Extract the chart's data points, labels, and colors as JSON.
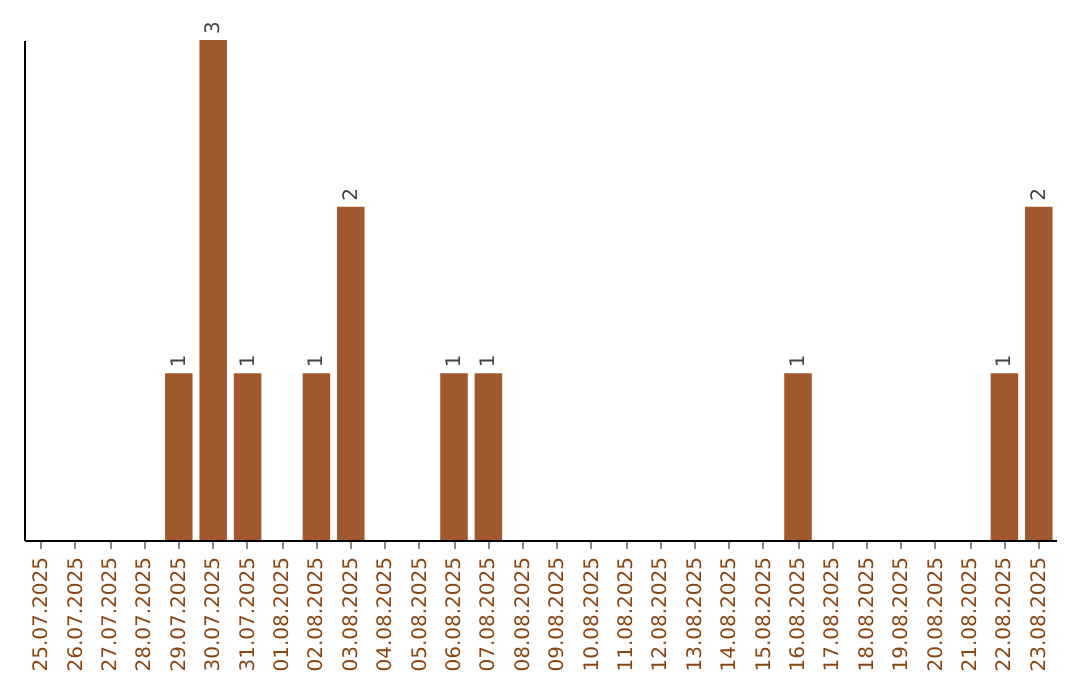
{
  "chart_data": {
    "type": "bar",
    "categories": [
      "25.07.2025",
      "26.07.2025",
      "27.07.2025",
      "28.07.2025",
      "29.07.2025",
      "30.07.2025",
      "31.07.2025",
      "01.08.2025",
      "02.08.2025",
      "03.08.2025",
      "04.08.2025",
      "05.08.2025",
      "06.08.2025",
      "07.08.2025",
      "08.08.2025",
      "09.08.2025",
      "10.08.2025",
      "11.08.2025",
      "12.08.2025",
      "13.08.2025",
      "14.08.2025",
      "15.08.2025",
      "16.08.2025",
      "17.08.2025",
      "18.08.2025",
      "19.08.2025",
      "20.08.2025",
      "21.08.2025",
      "22.08.2025",
      "23.08.2025"
    ],
    "values": [
      0,
      0,
      0,
      0,
      1,
      3,
      1,
      0,
      1,
      2,
      0,
      0,
      1,
      1,
      0,
      0,
      0,
      0,
      0,
      0,
      0,
      0,
      1,
      0,
      0,
      0,
      0,
      0,
      1,
      2
    ],
    "value_labels": [
      null,
      null,
      null,
      null,
      "1",
      "3",
      "1",
      null,
      "1",
      "2",
      null,
      null,
      "1",
      "1",
      null,
      null,
      null,
      null,
      null,
      null,
      null,
      null,
      "1",
      null,
      null,
      null,
      null,
      null,
      "1",
      "2"
    ],
    "color": "#a0582c"
  }
}
